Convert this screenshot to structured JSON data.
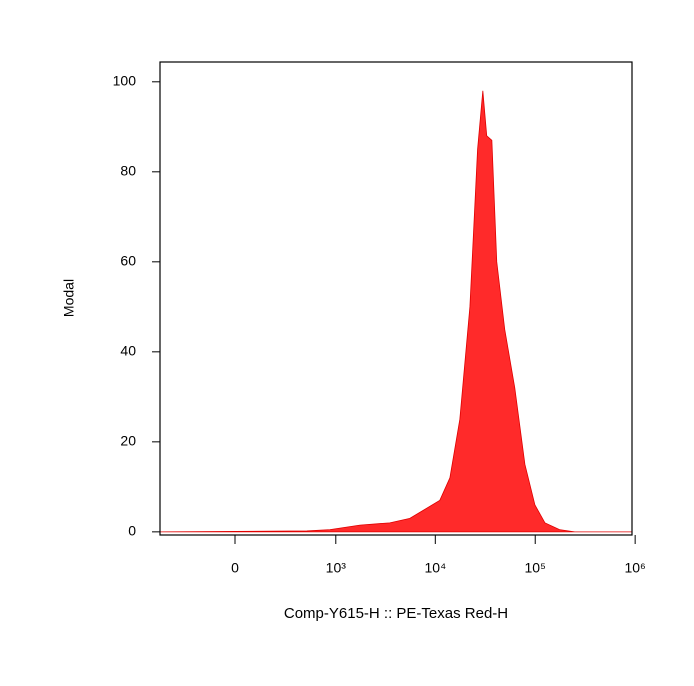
{
  "chart_data": {
    "type": "area",
    "x_label": "Comp-Y615-H :: PE-Texas Red-H",
    "y_label": "Modal",
    "x": [
      -540,
      500,
      873,
      1757,
      3500,
      5560,
      7860,
      11100,
      14000,
      17600,
      22200,
      26500,
      29900,
      32700,
      36800,
      41200,
      49500,
      62400,
      78800,
      99200,
      125000,
      175000,
      249000,
      930000
    ],
    "values": [
      0,
      0.2,
      0.5,
      1.5,
      2,
      3,
      5,
      7,
      12,
      25,
      50,
      85,
      98,
      88,
      87,
      60,
      45,
      32,
      15,
      6,
      2,
      0.5,
      0,
      0
    ],
    "color": "#ff2a2a",
    "xscale": "biexponential",
    "xlim": [
      -540,
      930000
    ],
    "xticks": [
      0,
      {
        "value": 1000,
        "label": "10³"
      },
      {
        "value": 10000,
        "label": "10⁴"
      },
      {
        "value": 100000,
        "label": "10⁵"
      },
      {
        "value": 1000000,
        "label": "10⁶"
      }
    ],
    "ylim": [
      -0.7,
      104.4
    ],
    "yticks": [
      0,
      20,
      40,
      60,
      80,
      100
    ]
  }
}
